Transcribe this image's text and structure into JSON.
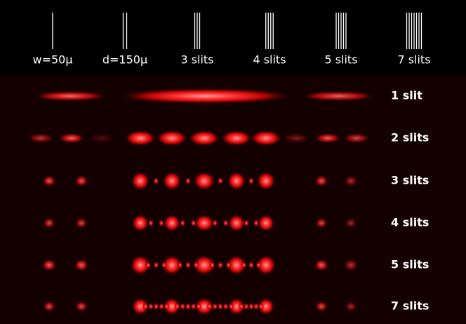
{
  "columns": [
    "w=50μ",
    "d=150μ",
    "3 slits",
    "4 slits",
    "5 slits",
    "7 slits"
  ],
  "rows": [
    "1 slit",
    "2 slits",
    "3 slits",
    "4 slits",
    "5 slits",
    "7 slits"
  ]
}
